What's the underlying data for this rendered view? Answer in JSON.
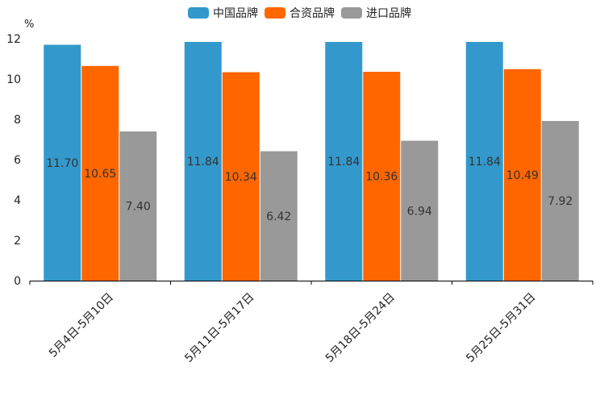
{
  "chart_data": {
    "type": "bar",
    "unit": "%",
    "categories": [
      "5月4日-5月10日",
      "5月11日-5月17日",
      "5月18日-5月24日",
      "5月25日-5月31日"
    ],
    "series": [
      {
        "name": "中国品牌",
        "color": "#3399cc",
        "values": [
          11.7,
          11.84,
          11.84,
          11.84
        ],
        "labels": [
          "11.70",
          "11.84",
          "11.84",
          "11.84"
        ]
      },
      {
        "name": "合资品牌",
        "color": "#ff6600",
        "values": [
          10.65,
          10.34,
          10.36,
          10.49
        ],
        "labels": [
          "10.65",
          "10.34",
          "10.36",
          "10.49"
        ]
      },
      {
        "name": "进口品牌",
        "color": "#999999",
        "values": [
          7.4,
          6.42,
          6.94,
          7.92
        ],
        "labels": [
          "7.40",
          "6.42",
          "6.94",
          "7.92"
        ]
      }
    ],
    "ylim": [
      0,
      12
    ],
    "yticks": [
      0,
      2,
      4,
      6,
      8,
      10,
      12
    ],
    "legend_position": "top-center",
    "grid": false
  }
}
